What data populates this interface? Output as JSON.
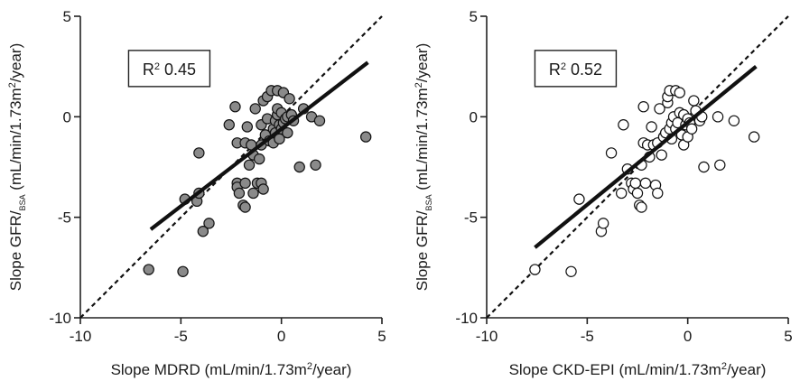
{
  "chart_data": [
    {
      "type": "scatter",
      "xlabel": "Slope MDRD (mL/min/1.73m²/year)",
      "ylabel": "Slope GFR/BSA (mL/min/1.73m²/year)",
      "xlim": [
        -10,
        5
      ],
      "ylim": [
        -10,
        5
      ],
      "xticks": [
        -10,
        -5,
        0,
        5
      ],
      "yticks": [
        -10,
        -5,
        0,
        5
      ],
      "grid": false,
      "marker": "filled-gray-circle",
      "annotation": "R² 0.45",
      "identity_line": {
        "style": "dashed",
        "from": [
          -10,
          -10
        ],
        "to": [
          5,
          5
        ]
      },
      "regression_line": {
        "style": "solid",
        "from": [
          -6.5,
          -5.6
        ],
        "to": [
          4.3,
          2.7
        ]
      },
      "points": [
        [
          -6.6,
          -7.6
        ],
        [
          -4.9,
          -7.7
        ],
        [
          -4.8,
          -4.1
        ],
        [
          -4.2,
          -4.2
        ],
        [
          -4.1,
          -3.8
        ],
        [
          -4.1,
          -1.8
        ],
        [
          -3.9,
          -5.7
        ],
        [
          -3.6,
          -5.3
        ],
        [
          -2.6,
          -0.4
        ],
        [
          -2.3,
          0.5
        ],
        [
          -2.2,
          -1.3
        ],
        [
          -2.2,
          -3.3
        ],
        [
          -2.2,
          -3.5
        ],
        [
          -2.1,
          -3.8
        ],
        [
          -1.9,
          -4.4
        ],
        [
          -1.8,
          -4.5
        ],
        [
          -1.8,
          -3.3
        ],
        [
          -1.8,
          -1.3
        ],
        [
          -1.7,
          -0.5
        ],
        [
          -1.6,
          -2.4
        ],
        [
          -1.5,
          -1.4
        ],
        [
          -1.4,
          -1.9
        ],
        [
          -1.4,
          -3.8
        ],
        [
          -1.3,
          0.4
        ],
        [
          -1.2,
          -3.3
        ],
        [
          -1.1,
          -2.1
        ],
        [
          -1.0,
          -1.4
        ],
        [
          -1.0,
          -3.3
        ],
        [
          -1.0,
          -0.4
        ],
        [
          -0.9,
          -3.6
        ],
        [
          -0.9,
          0.8
        ],
        [
          -0.8,
          -0.9
        ],
        [
          -0.7,
          1.0
        ],
        [
          -0.7,
          -0.1
        ],
        [
          -0.6,
          -1.2
        ],
        [
          -0.5,
          1.3
        ],
        [
          -0.4,
          -0.6
        ],
        [
          -0.4,
          -1.3
        ],
        [
          -0.3,
          -0.2
        ],
        [
          -0.3,
          -0.8
        ],
        [
          -0.2,
          1.3
        ],
        [
          -0.2,
          0.1
        ],
        [
          -0.2,
          0.4
        ],
        [
          -0.1,
          -0.4
        ],
        [
          -0.1,
          -1.1
        ],
        [
          0.0,
          -0.6
        ],
        [
          0.0,
          0.2
        ],
        [
          0.1,
          1.2
        ],
        [
          0.1,
          -0.3
        ],
        [
          0.2,
          -0.1
        ],
        [
          0.3,
          -0.8
        ],
        [
          0.3,
          0.0
        ],
        [
          0.4,
          0.9
        ],
        [
          0.5,
          0.1
        ],
        [
          0.6,
          -0.2
        ],
        [
          0.9,
          -2.5
        ],
        [
          1.1,
          0.4
        ],
        [
          1.5,
          0.0
        ],
        [
          1.7,
          -2.4
        ],
        [
          1.9,
          -0.2
        ],
        [
          4.2,
          -1.0
        ]
      ]
    },
    {
      "type": "scatter",
      "xlabel": "Slope CKD-EPI (mL/min/1.73m²/year)",
      "ylabel": "Slope GFR/BSA (mL/min/1.73m²/year)",
      "xlim": [
        -10,
        5
      ],
      "ylim": [
        -10,
        5
      ],
      "xticks": [
        -10,
        -5,
        0,
        5
      ],
      "yticks": [
        -10,
        -5,
        0,
        5
      ],
      "grid": false,
      "marker": "open-circle",
      "annotation": "R² 0.52",
      "identity_line": {
        "style": "dashed",
        "from": [
          -10,
          -10
        ],
        "to": [
          5,
          5
        ]
      },
      "regression_line": {
        "style": "solid",
        "from": [
          -7.6,
          -6.5
        ],
        "to": [
          3.4,
          2.5
        ]
      },
      "points": [
        [
          -7.6,
          -7.6
        ],
        [
          -5.8,
          -7.7
        ],
        [
          -5.4,
          -4.1
        ],
        [
          -4.3,
          -5.7
        ],
        [
          -4.2,
          -5.3
        ],
        [
          -3.8,
          -1.8
        ],
        [
          -3.3,
          -3.8
        ],
        [
          -3.2,
          -0.4
        ],
        [
          -3.0,
          -2.6
        ],
        [
          -2.8,
          -3.3
        ],
        [
          -2.7,
          -3.6
        ],
        [
          -2.6,
          -3.3
        ],
        [
          -2.5,
          -3.8
        ],
        [
          -2.4,
          -4.4
        ],
        [
          -2.3,
          -2.4
        ],
        [
          -2.3,
          -4.5
        ],
        [
          -2.2,
          0.5
        ],
        [
          -2.2,
          -1.3
        ],
        [
          -2.1,
          -3.3
        ],
        [
          -2.0,
          -1.4
        ],
        [
          -1.9,
          -2.0
        ],
        [
          -1.8,
          -0.5
        ],
        [
          -1.7,
          -1.4
        ],
        [
          -1.6,
          -3.4
        ],
        [
          -1.5,
          -1.3
        ],
        [
          -1.5,
          -3.8
        ],
        [
          -1.4,
          0.4
        ],
        [
          -1.3,
          -1.9
        ],
        [
          -1.2,
          -1.0
        ],
        [
          -1.1,
          -0.8
        ],
        [
          -1.0,
          0.7
        ],
        [
          -1.0,
          1.0
        ],
        [
          -0.9,
          -0.6
        ],
        [
          -0.9,
          1.3
        ],
        [
          -0.8,
          -1.1
        ],
        [
          -0.8,
          -0.3
        ],
        [
          -0.7,
          0.0
        ],
        [
          -0.6,
          1.3
        ],
        [
          -0.6,
          -0.6
        ],
        [
          -0.5,
          -0.3
        ],
        [
          -0.4,
          1.2
        ],
        [
          -0.4,
          0.2
        ],
        [
          -0.3,
          -0.9
        ],
        [
          -0.2,
          -1.4
        ],
        [
          -0.2,
          0.1
        ],
        [
          -0.1,
          -0.4
        ],
        [
          0.0,
          -0.1
        ],
        [
          0.0,
          -1.0
        ],
        [
          0.1,
          -0.3
        ],
        [
          0.2,
          -0.6
        ],
        [
          0.3,
          0.8
        ],
        [
          0.4,
          0.3
        ],
        [
          0.6,
          -0.2
        ],
        [
          0.7,
          0.0
        ],
        [
          0.8,
          -2.5
        ],
        [
          1.5,
          0.0
        ],
        [
          1.6,
          -2.4
        ],
        [
          2.3,
          -0.2
        ],
        [
          3.3,
          -1.0
        ]
      ]
    }
  ]
}
